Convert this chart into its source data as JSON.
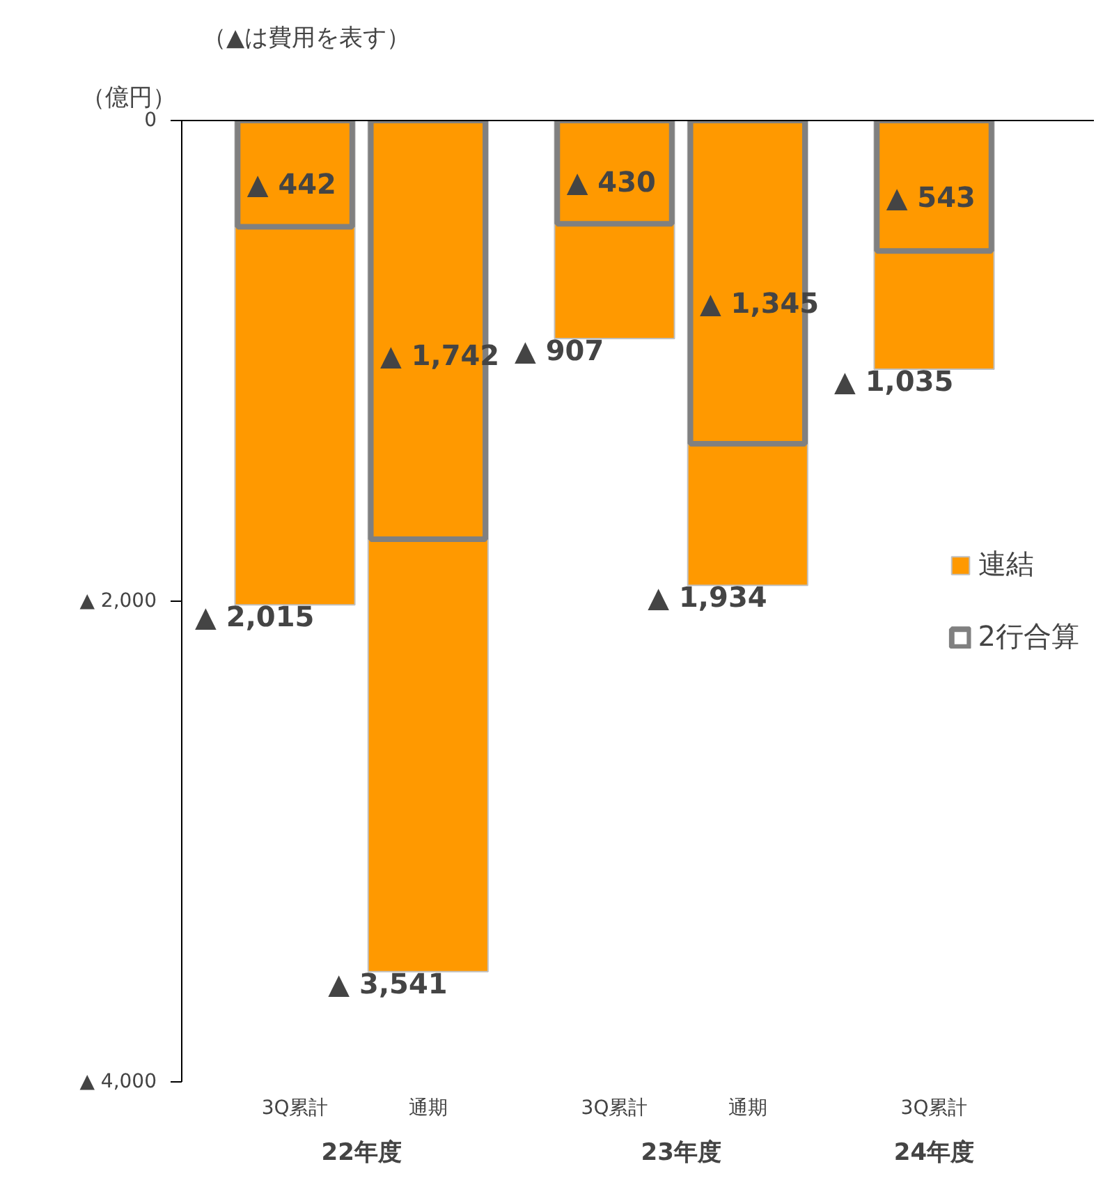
{
  "chart_data": {
    "type": "bar",
    "subtitle": "（▲は費用を表す）",
    "ylabel": "（億円）",
    "categories": [
      "3Q累計",
      "通期",
      "3Q累計",
      "通期",
      "3Q累計"
    ],
    "series": [
      {
        "name": "連結",
        "color": "#ff9900",
        "values": [
          2015,
          3541,
          907,
          1934,
          1035
        ],
        "value_labels": [
          "▲ 2,015",
          "▲ 3,541",
          "▲ 907",
          "▲ 1,934",
          "▲ 1,035"
        ]
      },
      {
        "name": "2行合算",
        "color": "#808080",
        "values": [
          442,
          1742,
          430,
          1345,
          543
        ],
        "value_labels": [
          "▲ 442",
          "▲ 1,742",
          "▲ 430",
          "▲ 1,345",
          "▲ 543"
        ]
      }
    ],
    "ylim": [
      4000,
      0
    ],
    "yticks": [
      0,
      {
        "value": 2000,
        "label": "▲ 2,000"
      },
      {
        "value": 4000,
        "label": "▲ 4,000"
      }
    ],
    "annotations": [
      "22年度",
      "23年度",
      "24年度"
    ],
    "grid": false,
    "legend": "right"
  }
}
